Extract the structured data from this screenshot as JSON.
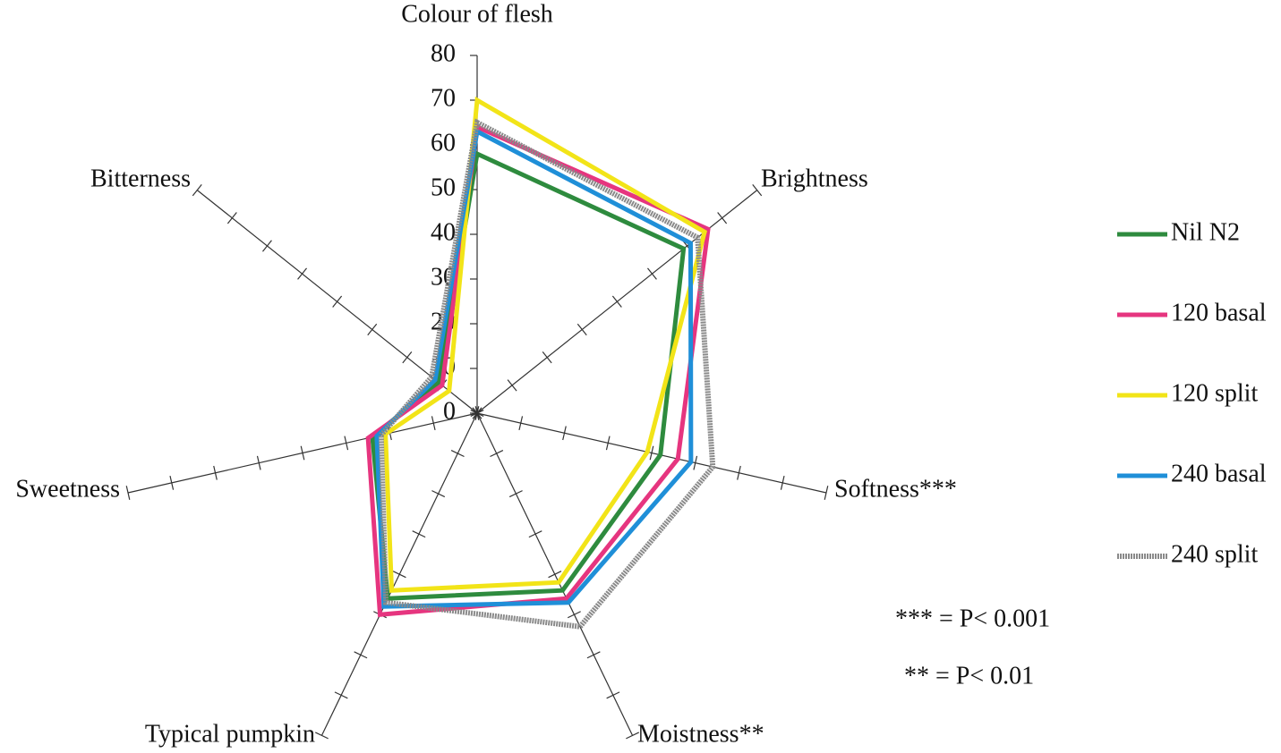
{
  "chart_data": {
    "type": "radar",
    "categories": [
      "Colour of flesh",
      "Brightness",
      "Softness***",
      "Moistness**",
      "Typical pumpkin",
      "Sweetness",
      "Bitterness"
    ],
    "series": [
      {
        "name": "Nil N2",
        "color": "#2e8b3e",
        "values": [
          58,
          59,
          42,
          44,
          46,
          24,
          11
        ]
      },
      {
        "name": "120 basal",
        "color": "#e6357f",
        "values": [
          64,
          66,
          46,
          46,
          50,
          25,
          10
        ]
      },
      {
        "name": "120 split",
        "color": "#f2e418",
        "values": [
          70,
          65,
          39,
          42,
          44,
          21,
          8
        ]
      },
      {
        "name": "240 basal",
        "color": "#1f8fd8",
        "values": [
          63,
          61,
          49,
          47,
          48,
          23,
          12
        ]
      },
      {
        "name": "240 split",
        "color": "#8a8a8a",
        "values": [
          65,
          63,
          54,
          53,
          47,
          22,
          13
        ]
      }
    ],
    "rlim": [
      0,
      80
    ],
    "rticks": [
      0,
      10,
      20,
      30,
      40,
      50,
      60,
      70,
      80
    ],
    "annotations": [
      "*** = P< 0.001",
      "** = P< 0.01"
    ]
  }
}
